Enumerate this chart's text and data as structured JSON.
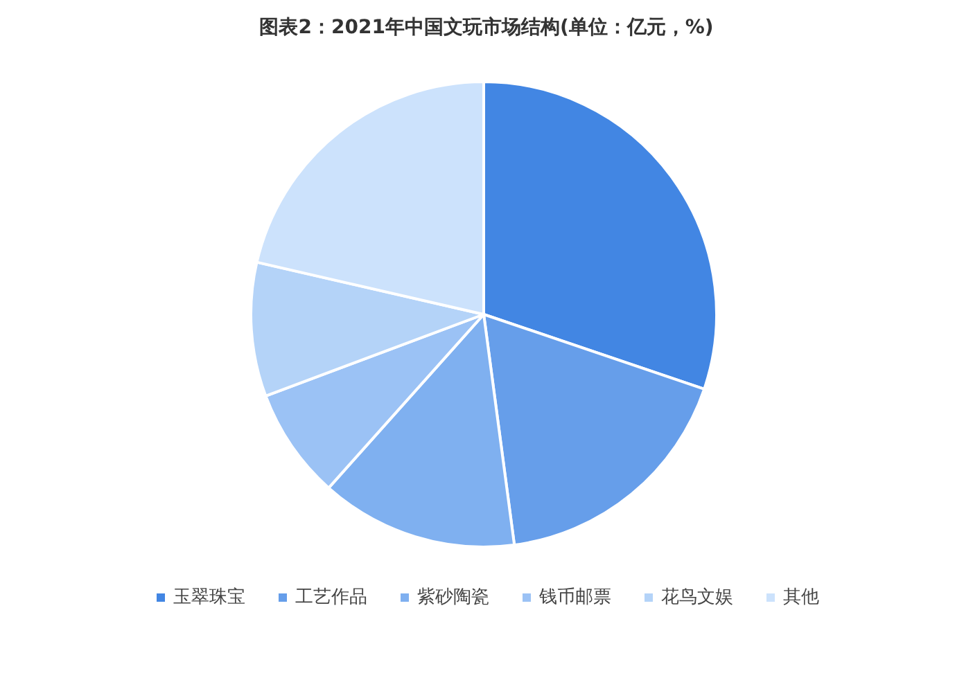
{
  "chart_data": {
    "type": "pie",
    "title": "图表2：2021年中国文玩市场结构(单位：亿元，%)",
    "categories": [
      "玉翠珠宝",
      "工艺作品",
      "紫砂陶瓷",
      "钱币邮票",
      "花鸟文娱",
      "其他"
    ],
    "values": [
      30.2,
      17.7,
      13.7,
      7.7,
      9.3,
      21.4
    ],
    "colors": [
      "#4286e3",
      "#669eea",
      "#7fb0f0",
      "#9bc2f5",
      "#b4d3f8",
      "#cce2fc"
    ],
    "legend": "bottom"
  }
}
